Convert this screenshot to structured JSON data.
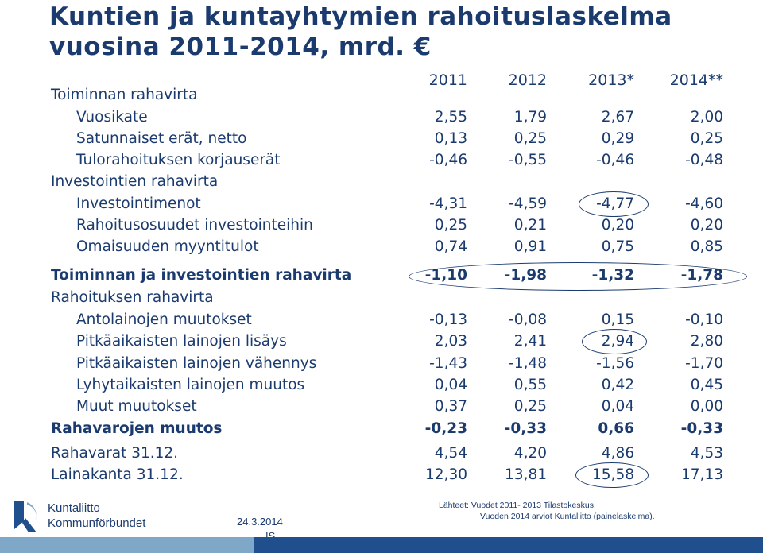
{
  "title_line1": "Kuntien ja kuntayhtymien rahoituslaskelma",
  "title_line2": "vuosina 2011-2014, mrd. €",
  "years": [
    "2011",
    "2012",
    "2013*",
    "2014**"
  ],
  "rows": [
    {
      "label": "Toiminnan rahavirta",
      "values": []
    },
    {
      "label": "Vuosikate",
      "values": [
        "2,55",
        "1,79",
        "2,67",
        "2,00"
      ]
    },
    {
      "label": "Satunnaiset erät, netto",
      "values": [
        "0,13",
        "0,25",
        "0,29",
        "0,25"
      ]
    },
    {
      "label": "Tulorahoituksen korjauserät",
      "values": [
        "-0,46",
        "-0,55",
        "-0,46",
        "-0,48"
      ]
    },
    {
      "label": "Investointien rahavirta",
      "values": []
    },
    {
      "label": "Investointimenot",
      "values": [
        "-4,31",
        "-4,59",
        "-4,77",
        "-4,60"
      ]
    },
    {
      "label": "Rahoitusosuudet investointeihin",
      "values": [
        "0,25",
        "0,21",
        "0,20",
        "0,20"
      ]
    },
    {
      "label": "Omaisuuden myyntitulot",
      "values": [
        "0,74",
        "0,91",
        "0,75",
        "0,85"
      ]
    },
    {
      "label": "Toiminnan ja investointien rahavirta",
      "values": [
        "-1,10",
        "-1,98",
        "-1,32",
        "-1,78"
      ]
    },
    {
      "label": "Rahoituksen rahavirta",
      "values": []
    },
    {
      "label": "Antolainojen muutokset",
      "values": [
        "-0,13",
        "-0,08",
        "0,15",
        "-0,10"
      ]
    },
    {
      "label": "Pitkäaikaisten lainojen lisäys",
      "values": [
        "2,03",
        "2,41",
        "2,94",
        "2,80"
      ]
    },
    {
      "label": "Pitkäaikaisten lainojen vähennys",
      "values": [
        "-1,43",
        "-1,48",
        "-1,56",
        "-1,70"
      ]
    },
    {
      "label": "Lyhytaikaisten lainojen muutos",
      "values": [
        "0,04",
        "0,55",
        "0,42",
        "0,45"
      ]
    },
    {
      "label": "Muut muutokset",
      "values": [
        "0,37",
        "0,25",
        "0,04",
        "0,00"
      ]
    },
    {
      "label": "Rahavarojen muutos",
      "values": [
        "-0,23",
        "-0,33",
        "0,66",
        "-0,33"
      ]
    },
    {
      "label": "Rahavarat 31.12.",
      "values": [
        "4,54",
        "4,20",
        "4,86",
        "4,53"
      ]
    },
    {
      "label": "Lainakanta 31.12.",
      "values": [
        "12,30",
        "13,81",
        "15,58",
        "17,13"
      ]
    }
  ],
  "logo": {
    "line1": "Kuntaliitto",
    "line2": "Kommunförbundet"
  },
  "date": "24.3.2014",
  "initials": "IS",
  "sources": {
    "line1": "Lähteet: Vuodet 2011- 2013 Tilastokeskus.",
    "line2": "Vuoden 2014 arviot Kuntaliitto (painelaskelma)."
  },
  "colors": {
    "text": "#1b3b6f",
    "bar_light": "#7fa7c8",
    "bar_dark": "#1f4f8c"
  }
}
